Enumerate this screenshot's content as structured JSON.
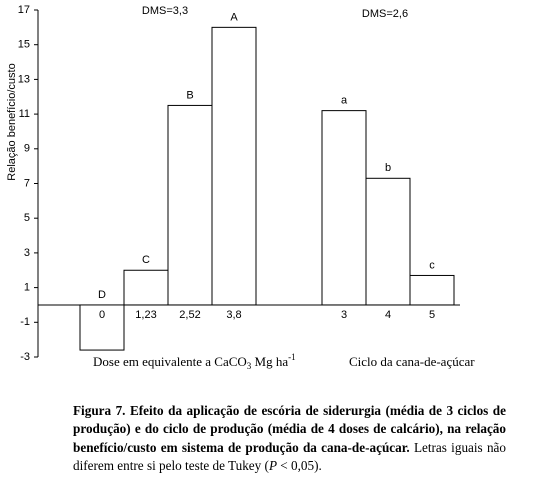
{
  "chart_data": {
    "type": "bar",
    "y_label": "Relação benefício/custo",
    "categories": [
      "0",
      "1,23",
      "2,52",
      "3,8",
      "3",
      "4",
      "5"
    ],
    "values": [
      -2.6,
      2.0,
      11.5,
      16.0,
      11.2,
      7.3,
      1.7
    ],
    "letters": [
      "D",
      "C",
      "B",
      "A",
      "a",
      "b",
      "c"
    ],
    "color": "#ffffff",
    "ylim": [
      -3,
      17
    ],
    "yticks": [
      -3,
      -1,
      1,
      3,
      5,
      7,
      9,
      11,
      13,
      15,
      17
    ],
    "annotations": [
      "DMS=3,3",
      "DMS=2,6"
    ],
    "x_group_labels": [
      [
        "Dose em equivalente a CaCO",
        "3",
        " Mg ha",
        "-1"
      ],
      [
        "Ciclo da cana-de-açúcar"
      ]
    ]
  },
  "caption": {
    "bold": "Figura 7. Efeito da aplicação de escória de siderurgia (média de 3 ciclos de produção) e do ciclo de produção (média de 4 doses de calcário), na relação benefício/custo em sistema de produção da cana-de-açúcar.",
    "text": [
      "Letras iguais não diferem entre si pelo teste de Tukey (",
      "P",
      " < 0,05)."
    ]
  }
}
